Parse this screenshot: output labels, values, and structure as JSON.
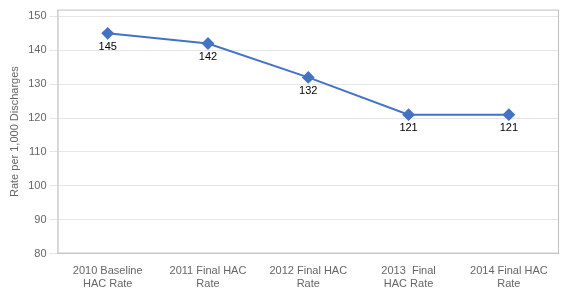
{
  "chart_data": {
    "type": "line",
    "categories": [
      "2010 Baseline\nHAC Rate",
      "2011 Final HAC\nRate",
      "2012 Final HAC\nRate",
      "2013  Final\nHAC Rate",
      "2014 Final HAC\nRate"
    ],
    "values": [
      145,
      142,
      132,
      121,
      121
    ],
    "color": "#4472c4",
    "marker": "diamond",
    "y_label": "Rate per 1,000 Discharges",
    "ylim": [
      80,
      152
    ],
    "yticks": [
      80,
      90,
      100,
      110,
      120,
      130,
      140,
      150
    ],
    "grid": true,
    "data_labels": true
  }
}
